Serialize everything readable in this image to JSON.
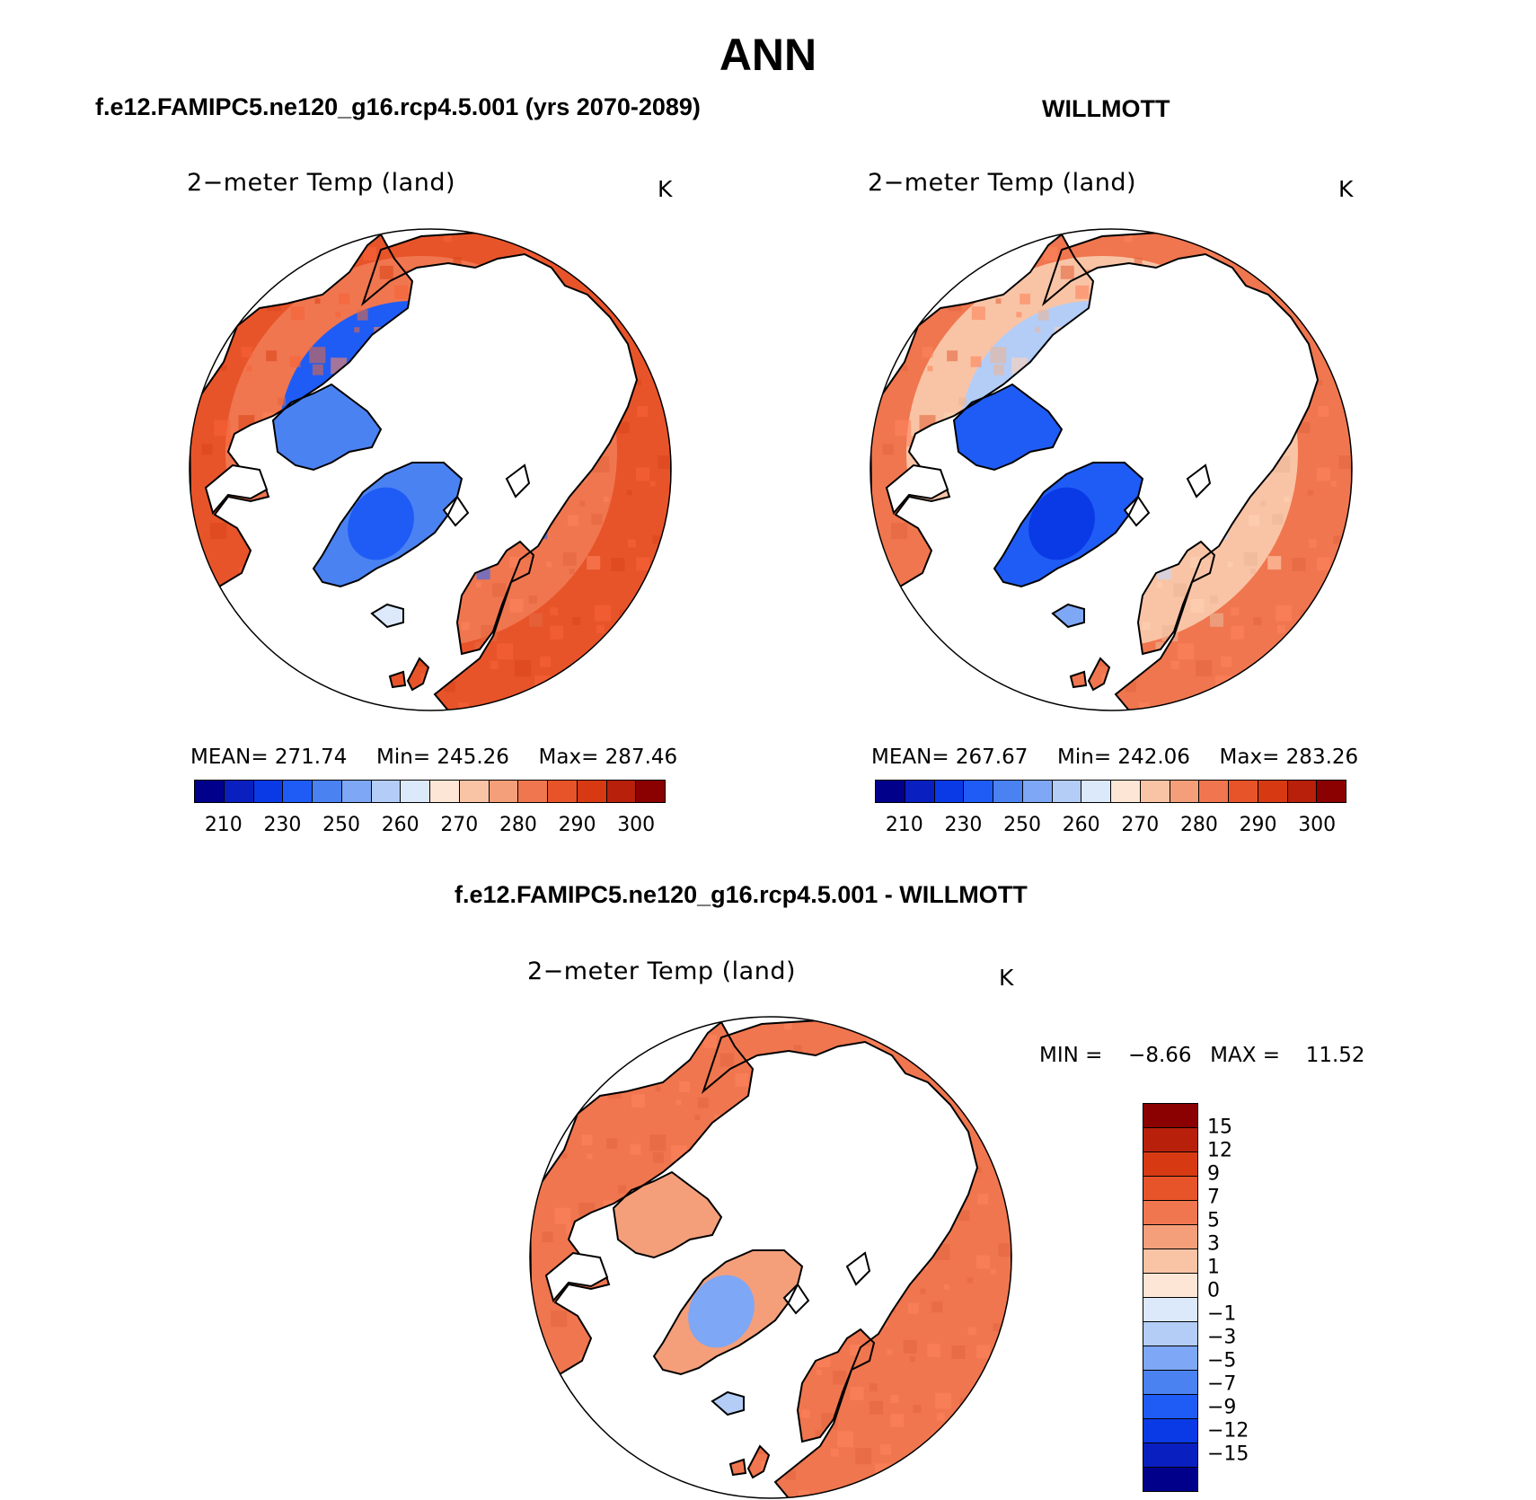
{
  "title": "ANN",
  "case_title": "f.e12.FAMIPC5.ne120_g16.rcp4.5.001 (yrs 2070-2089)",
  "obs_title": "WILLMOTT",
  "diff_title": "f.e12.FAMIPC5.ne120_g16.rcp4.5.001 - WILLMOTT",
  "colors": {
    "abs_levels": [
      "#00008b",
      "#0a1fc0",
      "#0a3ae6",
      "#1f5cf5",
      "#4a82f2",
      "#7ea7f5",
      "#b3cdf7",
      "#dbe9fa",
      "#fde6d5",
      "#f9c4a6",
      "#f49f7a",
      "#f0764f",
      "#e8542a",
      "#d73a12",
      "#b8200c",
      "#8b0000"
    ],
    "diff_levels": [
      "#8b0000",
      "#b8200c",
      "#d73a12",
      "#e8542a",
      "#f0764f",
      "#f49f7a",
      "#f9c4a6",
      "#fde6d5",
      "#dbe9fa",
      "#b3cdf7",
      "#7ea7f5",
      "#4a82f2",
      "#1f5cf5",
      "#0a3ae6",
      "#0a1fc0",
      "#00008b"
    ]
  },
  "chart_data": [
    {
      "type": "heatmap",
      "panel": "model",
      "label": "2−meter Temp (land)",
      "units": "K",
      "stats": {
        "mean_label": "MEAN=",
        "mean": "271.74",
        "min_label": "Min=",
        "min": "245.26",
        "max_label": "Max=",
        "max": "287.46"
      },
      "colorbar_ticks": [
        "210",
        "230",
        "250",
        "260",
        "270",
        "280",
        "290",
        "300"
      ],
      "zones": {
        "arctic_rim": 3,
        "mid_lat": 11,
        "south_rim": 12,
        "greenland_edge": 4,
        "greenland_core": 3,
        "ice_island": 7
      }
    },
    {
      "type": "heatmap",
      "panel": "observations",
      "label": "2−meter Temp (land)",
      "units": "K",
      "stats": {
        "mean_label": "MEAN=",
        "mean": "267.67",
        "min_label": "Min=",
        "min": "242.06",
        "max_label": "Max=",
        "max": "283.26"
      },
      "colorbar_ticks": [
        "210",
        "230",
        "250",
        "260",
        "270",
        "280",
        "290",
        "300"
      ],
      "zones": {
        "arctic_rim": 6,
        "mid_lat": 9,
        "south_rim": 11,
        "greenland_edge": 3,
        "greenland_core": 2,
        "ice_island": 5
      }
    },
    {
      "type": "heatmap",
      "panel": "difference",
      "label": "2−meter Temp (land)",
      "units": "K",
      "stats": {
        "min_label": "MIN =",
        "min": "−8.66",
        "max_label": "MAX =",
        "max": "11.52"
      },
      "colorbar_ticks": [
        "15",
        "12",
        "9",
        "7",
        "5",
        "3",
        "1",
        "0",
        "−1",
        "−3",
        "−5",
        "−7",
        "−9",
        "−12",
        "−15"
      ],
      "zones": {
        "arctic_rim": 4,
        "mid_lat": 4,
        "south_rim": 4,
        "greenland_edge": 5,
        "greenland_core": 10,
        "ice_island": 9
      }
    }
  ]
}
